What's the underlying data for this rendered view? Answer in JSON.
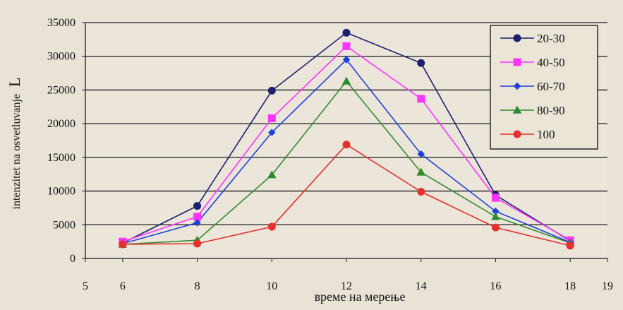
{
  "chart_data": {
    "type": "line",
    "xlabel": "време на мерење",
    "ylabel": "intenzitet na osvetluvanje",
    "ylabel_symbol": "L",
    "xlim": [
      5,
      19
    ],
    "ylim": [
      0,
      35000
    ],
    "x_ticks": [
      5,
      6,
      8,
      10,
      12,
      14,
      16,
      18,
      19
    ],
    "y_ticks": [
      0,
      5000,
      10000,
      15000,
      20000,
      25000,
      30000,
      35000
    ],
    "grid": "horizontal",
    "legend_position": "top-right",
    "x": [
      6,
      8,
      10,
      12,
      14,
      16,
      18
    ],
    "series": [
      {
        "name": "20-30",
        "color": "#1c1f6e",
        "marker": "circle",
        "values": [
          2300,
          7800,
          24900,
          33500,
          29000,
          9400,
          2600
        ]
      },
      {
        "name": "40-50",
        "color": "#ff33ff",
        "marker": "square",
        "values": [
          2500,
          6200,
          20800,
          31500,
          23700,
          9000,
          2700
        ]
      },
      {
        "name": "60-70",
        "color": "#1f3fdc",
        "marker": "diamond",
        "values": [
          2200,
          5300,
          18700,
          29500,
          15500,
          7000,
          2400
        ]
      },
      {
        "name": "80-90",
        "color": "#2e8b2e",
        "marker": "triangle",
        "values": [
          2100,
          2700,
          12400,
          26300,
          12800,
          6200,
          2300
        ]
      },
      {
        "name": "100",
        "color": "#e5302b",
        "marker": "circle",
        "values": [
          2100,
          2200,
          4700,
          16900,
          9900,
          4600,
          1900
        ]
      }
    ]
  }
}
